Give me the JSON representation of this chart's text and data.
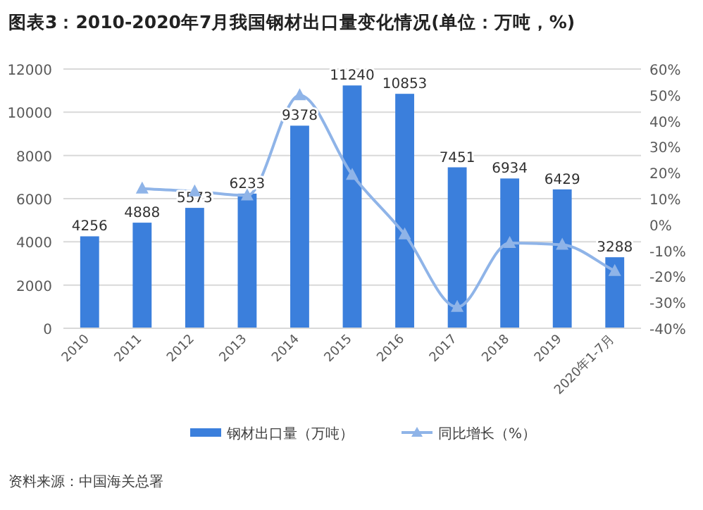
{
  "chart_data": {
    "type": "bar",
    "title": "图表3：2010-2020年7月我国钢材出口量变化情况(单位：万吨，%)",
    "categories": [
      "2010",
      "2011",
      "2012",
      "2013",
      "2014",
      "2015",
      "2016",
      "2017",
      "2018",
      "2019",
      "2020年1-7月"
    ],
    "series": [
      {
        "name": "钢材出口量（万吨）",
        "color": "#3b7fdc",
        "values": [
          4256,
          4888,
          5573,
          6233,
          9378,
          11240,
          10853,
          7451,
          6934,
          6429,
          3288
        ],
        "value_labels": [
          "4256",
          "4888",
          "5573",
          "6233",
          "9378",
          "11240",
          "10853",
          "7451",
          "6934",
          "6429",
          "3288"
        ]
      },
      {
        "name": "同比增长（%）",
        "type": "line",
        "axis": "y2",
        "color": "#8fb4e8",
        "marker": "triangle",
        "values": [
          null,
          13.9,
          12.8,
          11.2,
          49.9,
          19.2,
          -3.8,
          -31.8,
          -7.1,
          -7.8,
          -17.9
        ]
      }
    ],
    "ylim": [
      0,
      12000
    ],
    "yticks": [
      0,
      2000,
      4000,
      6000,
      8000,
      10000,
      12000
    ],
    "y2lim": [
      -40,
      60
    ],
    "y2ticks": [
      {
        "value": -40,
        "label": "-40%"
      },
      {
        "value": -30,
        "label": "-30%"
      },
      {
        "value": -20,
        "label": "-20%"
      },
      {
        "value": -10,
        "label": "-10%"
      },
      {
        "value": 0,
        "label": "0%"
      },
      {
        "value": 10,
        "label": "10%"
      },
      {
        "value": 20,
        "label": "20%"
      },
      {
        "value": 30,
        "label": "30%"
      },
      {
        "value": 40,
        "label": "40%"
      },
      {
        "value": 50,
        "label": "50%"
      },
      {
        "value": 60,
        "label": "60%"
      }
    ],
    "grid": "y",
    "legend": "bottom",
    "annotations": [
      "资料来源：中国海关总署"
    ]
  }
}
